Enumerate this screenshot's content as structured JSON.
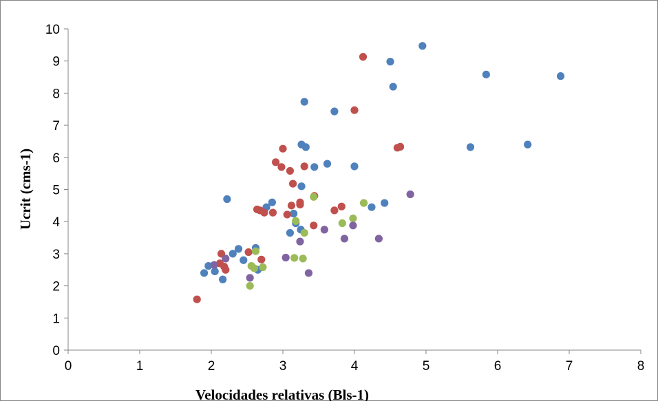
{
  "chart_data": {
    "type": "scatter",
    "title": "",
    "xlabel": "Velocidades relativas (Bls-1)",
    "ylabel": "Ucrit (cms-1)",
    "xlim": [
      0,
      8
    ],
    "ylim": [
      0,
      10
    ],
    "x_ticks": [
      "0",
      "1",
      "2",
      "3",
      "4",
      "5",
      "6",
      "7",
      "8"
    ],
    "y_ticks": [
      "0",
      "1",
      "2",
      "3",
      "4",
      "5",
      "6",
      "7",
      "8",
      "9",
      "10"
    ],
    "grid": false,
    "legend": "none",
    "series": [
      {
        "color": "#4f81bd",
        "points": [
          [
            1.9,
            2.4
          ],
          [
            1.96,
            2.62
          ],
          [
            2.05,
            2.45
          ],
          [
            2.16,
            2.2
          ],
          [
            2.22,
            4.7
          ],
          [
            2.3,
            3.0
          ],
          [
            2.38,
            3.15
          ],
          [
            2.45,
            2.8
          ],
          [
            2.62,
            3.18
          ],
          [
            2.65,
            2.5
          ],
          [
            2.77,
            4.45
          ],
          [
            2.85,
            4.6
          ],
          [
            3.1,
            3.65
          ],
          [
            3.15,
            4.25
          ],
          [
            3.18,
            3.95
          ],
          [
            3.25,
            3.75
          ],
          [
            3.26,
            5.1
          ],
          [
            3.26,
            6.4
          ],
          [
            3.3,
            7.73
          ],
          [
            3.32,
            6.32
          ],
          [
            3.44,
            5.7
          ],
          [
            3.62,
            5.8
          ],
          [
            3.72,
            7.43
          ],
          [
            4.0,
            5.72
          ],
          [
            4.24,
            4.45
          ],
          [
            4.42,
            4.58
          ],
          [
            4.5,
            8.98
          ],
          [
            4.54,
            8.2
          ],
          [
            4.95,
            9.47
          ],
          [
            5.62,
            6.32
          ],
          [
            5.84,
            8.58
          ],
          [
            6.42,
            6.4
          ],
          [
            6.88,
            8.53
          ]
        ]
      },
      {
        "color": "#c0504d",
        "points": [
          [
            1.8,
            1.58
          ],
          [
            2.12,
            2.7
          ],
          [
            2.14,
            3.0
          ],
          [
            2.18,
            2.6
          ],
          [
            2.2,
            2.5
          ],
          [
            2.52,
            3.05
          ],
          [
            2.64,
            4.38
          ],
          [
            2.68,
            4.35
          ],
          [
            2.7,
            2.82
          ],
          [
            2.74,
            4.28
          ],
          [
            2.86,
            4.28
          ],
          [
            2.9,
            5.85
          ],
          [
            2.98,
            5.7
          ],
          [
            3.0,
            6.27
          ],
          [
            3.06,
            4.22
          ],
          [
            3.1,
            5.58
          ],
          [
            3.12,
            4.5
          ],
          [
            3.14,
            5.18
          ],
          [
            3.24,
            4.53
          ],
          [
            3.24,
            4.6
          ],
          [
            3.3,
            5.72
          ],
          [
            3.43,
            3.88
          ],
          [
            3.44,
            4.8
          ],
          [
            3.72,
            4.35
          ],
          [
            3.82,
            4.47
          ],
          [
            4.0,
            7.47
          ],
          [
            4.12,
            9.13
          ],
          [
            4.6,
            6.3
          ],
          [
            4.64,
            6.33
          ]
        ]
      },
      {
        "color": "#9bbb59",
        "points": [
          [
            2.54,
            2.0
          ],
          [
            2.56,
            2.62
          ],
          [
            2.6,
            2.55
          ],
          [
            2.62,
            3.08
          ],
          [
            2.72,
            2.58
          ],
          [
            3.16,
            2.87
          ],
          [
            3.18,
            4.02
          ],
          [
            3.28,
            2.85
          ],
          [
            3.3,
            3.65
          ],
          [
            3.43,
            4.77
          ],
          [
            3.83,
            3.95
          ],
          [
            3.98,
            4.1
          ],
          [
            4.13,
            4.58
          ]
        ]
      },
      {
        "color": "#8064a2",
        "points": [
          [
            2.04,
            2.65
          ],
          [
            2.2,
            2.85
          ],
          [
            2.54,
            2.25
          ],
          [
            3.04,
            2.88
          ],
          [
            3.24,
            3.38
          ],
          [
            3.36,
            2.4
          ],
          [
            3.58,
            3.75
          ],
          [
            3.86,
            3.47
          ],
          [
            3.98,
            3.88
          ],
          [
            4.34,
            3.47
          ],
          [
            4.78,
            4.85
          ]
        ]
      }
    ]
  },
  "colors": {
    "axis": "#868686",
    "border": "#868686",
    "background": "#ffffff"
  }
}
